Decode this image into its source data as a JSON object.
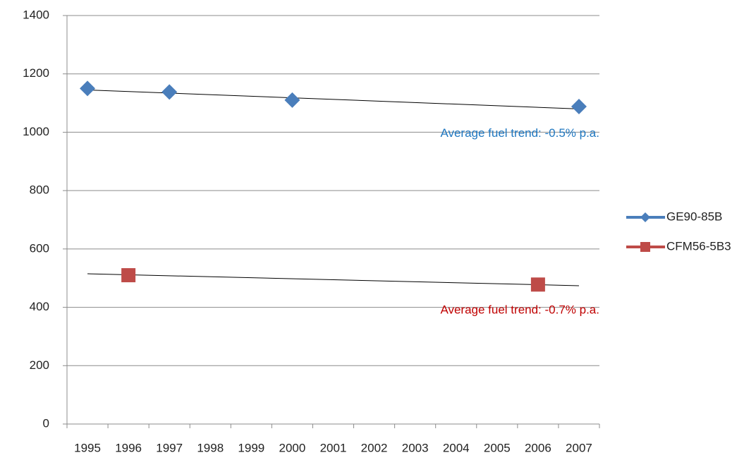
{
  "chart_data": {
    "type": "scatter-category",
    "categories": [
      "1995",
      "1996",
      "1997",
      "1998",
      "1999",
      "2000",
      "2001",
      "2002",
      "2003",
      "2004",
      "2005",
      "2006",
      "2007"
    ],
    "series": [
      {
        "name": "GE90-85B",
        "color": "#4a7ebb",
        "marker": "diamond",
        "values": [
          1150,
          null,
          1138,
          null,
          null,
          1110,
          null,
          null,
          null,
          null,
          null,
          null,
          1088
        ],
        "trendline": [
          1145,
          1080
        ]
      },
      {
        "name": "CFM56-5B3",
        "color": "#be4b48",
        "marker": "square",
        "values": [
          null,
          510,
          null,
          null,
          null,
          null,
          null,
          null,
          null,
          null,
          null,
          478,
          null
        ],
        "trendline": [
          515,
          474
        ]
      }
    ],
    "annotations": [
      {
        "text": "Average fuel trend: -0.5% p.a.",
        "color": "#1f77c0"
      },
      {
        "text": "Average fuel trend: -0.7% p.a.",
        "color": "#c00000"
      }
    ],
    "ylim": [
      0,
      1400
    ],
    "yticks": [
      0,
      200,
      400,
      600,
      800,
      1000,
      1200,
      1400
    ],
    "grid": true,
    "legend": "right"
  }
}
